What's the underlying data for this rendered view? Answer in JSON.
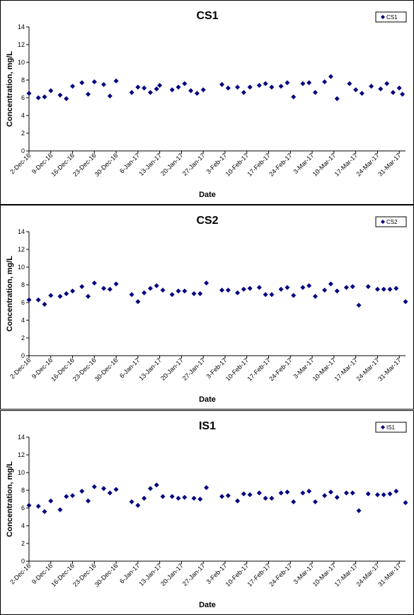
{
  "chart_data": [
    {
      "type": "scatter",
      "title": "CS1",
      "xlabel": "Date",
      "ylabel": "Concentration, mg/L",
      "ylim": [
        0,
        14
      ],
      "yticks": [
        0,
        2,
        4,
        6,
        8,
        10,
        12,
        14
      ],
      "xticks": [
        "2-Dec-16",
        "9-Dec-16",
        "16-Dec-16",
        "23-Dec-16",
        "30-Dec-16",
        "6-Jan-17",
        "13-Jan-17",
        "20-Jan-17",
        "27-Jan-17",
        "3-Feb-17",
        "10-Feb-17",
        "17-Feb-17",
        "24-Feb-17",
        "3-Mar-17",
        "10-Mar-17",
        "17-Mar-17",
        "24-Mar-17",
        "31-Mar-17"
      ],
      "xlim": [
        "2-Dec-16",
        "2-Apr-17"
      ],
      "grid": false,
      "legend": "top-right",
      "marker_color": "#000080",
      "series": [
        {
          "name": "CS1",
          "points": [
            [
              "2-Dec-16",
              6.5
            ],
            [
              "5-Dec-16",
              6.0
            ],
            [
              "7-Dec-16",
              6.1
            ],
            [
              "9-Dec-16",
              6.8
            ],
            [
              "12-Dec-16",
              6.3
            ],
            [
              "14-Dec-16",
              5.9
            ],
            [
              "16-Dec-16",
              7.3
            ],
            [
              "19-Dec-16",
              7.7
            ],
            [
              "21-Dec-16",
              6.4
            ],
            [
              "23-Dec-16",
              7.8
            ],
            [
              "26-Dec-16",
              7.5
            ],
            [
              "28-Dec-16",
              6.2
            ],
            [
              "30-Dec-16",
              7.9
            ],
            [
              "4-Jan-17",
              6.6
            ],
            [
              "6-Jan-17",
              7.2
            ],
            [
              "8-Jan-17",
              7.1
            ],
            [
              "10-Jan-17",
              6.6
            ],
            [
              "12-Jan-17",
              7.0
            ],
            [
              "13-Jan-17",
              7.4
            ],
            [
              "17-Jan-17",
              6.9
            ],
            [
              "19-Jan-17",
              7.2
            ],
            [
              "21-Jan-17",
              7.6
            ],
            [
              "23-Jan-17",
              6.8
            ],
            [
              "25-Jan-17",
              6.5
            ],
            [
              "27-Jan-17",
              6.9
            ],
            [
              "2-Feb-17",
              7.5
            ],
            [
              "4-Feb-17",
              7.1
            ],
            [
              "7-Feb-17",
              7.2
            ],
            [
              "9-Feb-17",
              6.6
            ],
            [
              "11-Feb-17",
              7.2
            ],
            [
              "14-Feb-17",
              7.4
            ],
            [
              "16-Feb-17",
              7.6
            ],
            [
              "18-Feb-17",
              7.2
            ],
            [
              "21-Feb-17",
              7.3
            ],
            [
              "23-Feb-17",
              7.7
            ],
            [
              "25-Feb-17",
              6.1
            ],
            [
              "28-Feb-17",
              7.6
            ],
            [
              "2-Mar-17",
              7.7
            ],
            [
              "4-Mar-17",
              6.6
            ],
            [
              "7-Mar-17",
              7.8
            ],
            [
              "9-Mar-17",
              8.4
            ],
            [
              "11-Mar-17",
              5.9
            ],
            [
              "15-Mar-17",
              7.6
            ],
            [
              "17-Mar-17",
              6.9
            ],
            [
              "19-Mar-17",
              6.5
            ],
            [
              "22-Mar-17",
              7.3
            ],
            [
              "25-Mar-17",
              7.0
            ],
            [
              "27-Mar-17",
              7.6
            ],
            [
              "29-Mar-17",
              6.6
            ],
            [
              "31-Mar-17",
              7.1
            ],
            [
              "1-Apr-17",
              6.4
            ]
          ]
        }
      ]
    },
    {
      "type": "scatter",
      "title": "CS2",
      "xlabel": "Date",
      "ylabel": "Concentration, mg/L",
      "ylim": [
        0,
        14
      ],
      "yticks": [
        0,
        2,
        4,
        6,
        8,
        10,
        12,
        14
      ],
      "xticks": [
        "2-Dec-16",
        "9-Dec-16",
        "16-Dec-16",
        "23-Dec-16",
        "30-Dec-16",
        "6-Jan-17",
        "13-Jan-17",
        "20-Jan-17",
        "27-Jan-17",
        "3-Feb-17",
        "10-Feb-17",
        "17-Feb-17",
        "24-Feb-17",
        "3-Mar-17",
        "10-Mar-17",
        "17-Mar-17",
        "24-Mar-17",
        "31-Mar-17"
      ],
      "xlim": [
        "2-Dec-16",
        "2-Apr-17"
      ],
      "grid": false,
      "legend": "top-right",
      "marker_color": "#000080",
      "series": [
        {
          "name": "CS2",
          "points": [
            [
              "2-Dec-16",
              6.3
            ],
            [
              "5-Dec-16",
              6.3
            ],
            [
              "7-Dec-16",
              5.8
            ],
            [
              "9-Dec-16",
              6.8
            ],
            [
              "12-Dec-16",
              6.7
            ],
            [
              "14-Dec-16",
              7.0
            ],
            [
              "16-Dec-16",
              7.3
            ],
            [
              "19-Dec-16",
              7.8
            ],
            [
              "21-Dec-16",
              6.7
            ],
            [
              "23-Dec-16",
              8.2
            ],
            [
              "26-Dec-16",
              7.6
            ],
            [
              "28-Dec-16",
              7.5
            ],
            [
              "30-Dec-16",
              8.1
            ],
            [
              "4-Jan-17",
              6.9
            ],
            [
              "6-Jan-17",
              6.1
            ],
            [
              "8-Jan-17",
              7.1
            ],
            [
              "10-Jan-17",
              7.6
            ],
            [
              "12-Jan-17",
              7.9
            ],
            [
              "14-Jan-17",
              7.4
            ],
            [
              "17-Jan-17",
              6.9
            ],
            [
              "19-Jan-17",
              7.3
            ],
            [
              "21-Jan-17",
              7.3
            ],
            [
              "24-Jan-17",
              7.0
            ],
            [
              "26-Jan-17",
              7.0
            ],
            [
              "28-Jan-17",
              8.2
            ],
            [
              "2-Feb-17",
              7.4
            ],
            [
              "4-Feb-17",
              7.4
            ],
            [
              "7-Feb-17",
              7.1
            ],
            [
              "9-Feb-17",
              7.5
            ],
            [
              "11-Feb-17",
              7.6
            ],
            [
              "14-Feb-17",
              7.7
            ],
            [
              "16-Feb-17",
              6.9
            ],
            [
              "18-Feb-17",
              6.9
            ],
            [
              "21-Feb-17",
              7.5
            ],
            [
              "23-Feb-17",
              7.7
            ],
            [
              "25-Feb-17",
              6.8
            ],
            [
              "28-Feb-17",
              7.7
            ],
            [
              "2-Mar-17",
              7.9
            ],
            [
              "4-Mar-17",
              6.7
            ],
            [
              "7-Mar-17",
              7.4
            ],
            [
              "9-Mar-17",
              8.1
            ],
            [
              "11-Mar-17",
              7.3
            ],
            [
              "14-Mar-17",
              7.7
            ],
            [
              "16-Mar-17",
              7.8
            ],
            [
              "18-Mar-17",
              5.7
            ],
            [
              "21-Mar-17",
              7.8
            ],
            [
              "24-Mar-17",
              7.5
            ],
            [
              "26-Mar-17",
              7.5
            ],
            [
              "28-Mar-17",
              7.5
            ],
            [
              "30-Mar-17",
              7.6
            ],
            [
              "2-Apr-17",
              6.1
            ]
          ]
        }
      ]
    },
    {
      "type": "scatter",
      "title": "IS1",
      "xlabel": "Date",
      "ylabel": "Concentration, mg/L",
      "ylim": [
        0,
        14
      ],
      "yticks": [
        0,
        2,
        4,
        6,
        8,
        10,
        12,
        14
      ],
      "xticks": [
        "2-Dec-16",
        "9-Dec-16",
        "16-Dec-16",
        "23-Dec-16",
        "30-Dec-16",
        "6-Jan-17",
        "13-Jan-17",
        "20-Jan-17",
        "27-Jan-17",
        "3-Feb-17",
        "10-Feb-17",
        "17-Feb-17",
        "24-Feb-17",
        "3-Mar-17",
        "10-Mar-17",
        "17-Mar-17",
        "24-Mar-17",
        "31-Mar-17"
      ],
      "xlim": [
        "2-Dec-16",
        "2-Apr-17"
      ],
      "grid": false,
      "legend": "top-right",
      "marker_color": "#000080",
      "series": [
        {
          "name": "IS1",
          "points": [
            [
              "2-Dec-16",
              6.3
            ],
            [
              "5-Dec-16",
              6.2
            ],
            [
              "7-Dec-16",
              5.6
            ],
            [
              "9-Dec-16",
              6.8
            ],
            [
              "12-Dec-16",
              5.8
            ],
            [
              "14-Dec-16",
              7.3
            ],
            [
              "16-Dec-16",
              7.4
            ],
            [
              "19-Dec-16",
              7.9
            ],
            [
              "21-Dec-16",
              6.8
            ],
            [
              "23-Dec-16",
              8.4
            ],
            [
              "26-Dec-16",
              8.2
            ],
            [
              "28-Dec-16",
              7.7
            ],
            [
              "30-Dec-16",
              8.1
            ],
            [
              "4-Jan-17",
              6.7
            ],
            [
              "6-Jan-17",
              6.3
            ],
            [
              "8-Jan-17",
              7.1
            ],
            [
              "10-Jan-17",
              8.2
            ],
            [
              "12-Jan-17",
              8.6
            ],
            [
              "14-Jan-17",
              7.3
            ],
            [
              "17-Jan-17",
              7.3
            ],
            [
              "19-Jan-17",
              7.1
            ],
            [
              "21-Jan-17",
              7.2
            ],
            [
              "24-Jan-17",
              7.1
            ],
            [
              "26-Jan-17",
              7.0
            ],
            [
              "28-Jan-17",
              8.3
            ],
            [
              "2-Feb-17",
              7.3
            ],
            [
              "4-Feb-17",
              7.4
            ],
            [
              "7-Feb-17",
              6.8
            ],
            [
              "9-Feb-17",
              7.6
            ],
            [
              "11-Feb-17",
              7.5
            ],
            [
              "14-Feb-17",
              7.7
            ],
            [
              "16-Feb-17",
              7.1
            ],
            [
              "18-Feb-17",
              7.1
            ],
            [
              "21-Feb-17",
              7.7
            ],
            [
              "23-Feb-17",
              7.8
            ],
            [
              "25-Feb-17",
              6.7
            ],
            [
              "28-Feb-17",
              7.7
            ],
            [
              "2-Mar-17",
              7.9
            ],
            [
              "4-Mar-17",
              6.7
            ],
            [
              "7-Mar-17",
              7.4
            ],
            [
              "9-Mar-17",
              7.8
            ],
            [
              "11-Mar-17",
              7.2
            ],
            [
              "14-Mar-17",
              7.7
            ],
            [
              "16-Mar-17",
              7.7
            ],
            [
              "18-Mar-17",
              5.7
            ],
            [
              "21-Mar-17",
              7.6
            ],
            [
              "24-Mar-17",
              7.5
            ],
            [
              "26-Mar-17",
              7.5
            ],
            [
              "28-Mar-17",
              7.6
            ],
            [
              "30-Mar-17",
              7.9
            ],
            [
              "2-Apr-17",
              6.6
            ]
          ]
        }
      ]
    }
  ]
}
